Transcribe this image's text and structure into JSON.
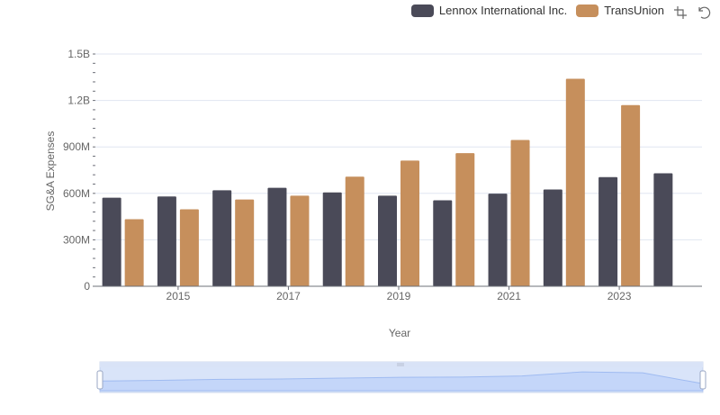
{
  "legend": [
    {
      "name": "Lennox International Inc.",
      "color": "#4a4a58"
    },
    {
      "name": "TransUnion",
      "color": "#c68f5c"
    }
  ],
  "toolbox": {
    "zoom_icon": "zoom-icon",
    "restore_icon": "restore-icon"
  },
  "chart_data": {
    "type": "bar",
    "xlabel": "Year",
    "ylabel": "SG&A Expenses",
    "categories": [
      "2014",
      "2015",
      "2016",
      "2017",
      "2018",
      "2019",
      "2020",
      "2021",
      "2022",
      "2023",
      "2024"
    ],
    "x_tick_labels": [
      "2015",
      "2017",
      "2019",
      "2021",
      "2023"
    ],
    "y_ticks": [
      0,
      300000000,
      600000000,
      900000000,
      1200000000,
      1500000000
    ],
    "y_tick_labels": [
      "0",
      "300M",
      "600M",
      "900M",
      "1.2B",
      "1.5B"
    ],
    "ylim": [
      0,
      1500000000
    ],
    "grid": true,
    "legend_position": "top-right",
    "series": [
      {
        "name": "Lennox International Inc.",
        "color": "#4a4a58",
        "values": [
          572000000,
          580000000,
          620000000,
          636000000,
          606000000,
          585000000,
          555000000,
          598000000,
          625000000,
          705000000,
          730000000
        ]
      },
      {
        "name": "TransUnion",
        "color": "#c68f5c",
        "values": [
          433000000,
          497000000,
          560000000,
          585000000,
          708000000,
          812000000,
          860000000,
          945000000,
          1340000000,
          1170000000,
          null
        ]
      }
    ]
  }
}
